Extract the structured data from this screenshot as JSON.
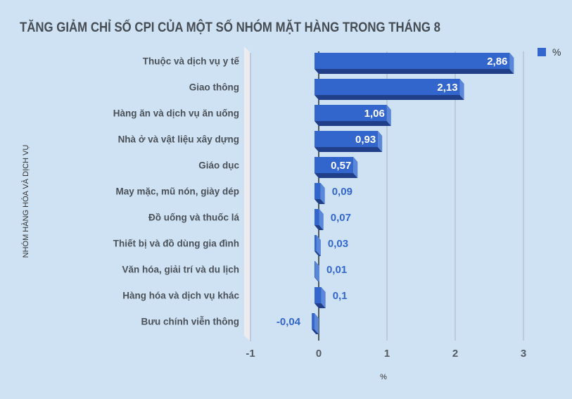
{
  "title": "TĂNG GIẢM CHỈ SỐ CPI CỦA MỘT SỐ NHÓM MẶT HÀNG TRONG THÁNG 8",
  "legend": {
    "label": "%",
    "color": "#3366cc"
  },
  "colors": {
    "background": "#cfe2f3",
    "bar_front": "#3366cc",
    "bar_bottom": "#213f88",
    "bar_side": "#5b87d9",
    "label_outside": "#3366cc",
    "label_inside": "#ffffff",
    "gridline": "#a8b3bf",
    "zero_line": "#000000",
    "wall": "#ececee"
  },
  "chart_data": {
    "type": "bar",
    "orientation": "horizontal",
    "style": "3d",
    "title": "TĂNG GIẢM CHỈ SỐ CPI CỦA MỘT SỐ NHÓM MẶT HÀNG TRONG THÁNG 8",
    "xlabel": "%",
    "ylabel": "NHÓM HÀNG HÓA VÀ DỊCH VỤ",
    "categories": [
      "Thuộc và dịch vụ y tế",
      "Giao thông",
      "Hàng ăn và dịch vụ ăn uống",
      "Nhà ở và vật liệu xây dựng",
      "Giáo dục",
      "May mặc, mũ nón, giày dép",
      "Đồ uống và thuốc lá",
      "Thiết bị và đồ dùng gia đình",
      "Văn hóa, giải trí và du lịch",
      "Hàng hóa và dịch vụ khác",
      "Bưu chính viễn thông"
    ],
    "series": [
      {
        "name": "%",
        "values": [
          2.86,
          2.13,
          1.06,
          0.93,
          0.57,
          0.09,
          0.07,
          0.03,
          0.01,
          0.1,
          -0.04
        ]
      }
    ],
    "value_labels": [
      "2,86",
      "2,13",
      "1,06",
      "0,93",
      "0,57",
      "0,09",
      "0,07",
      "0,03",
      "0,01",
      "0,1",
      "-0,04"
    ],
    "xlim": [
      -1,
      3
    ],
    "xticks": [
      -1,
      0,
      1,
      2,
      3
    ],
    "xtick_labels": [
      "-1",
      "0",
      "1",
      "2",
      "3"
    ],
    "grid": true,
    "legend_position": "top-right"
  }
}
